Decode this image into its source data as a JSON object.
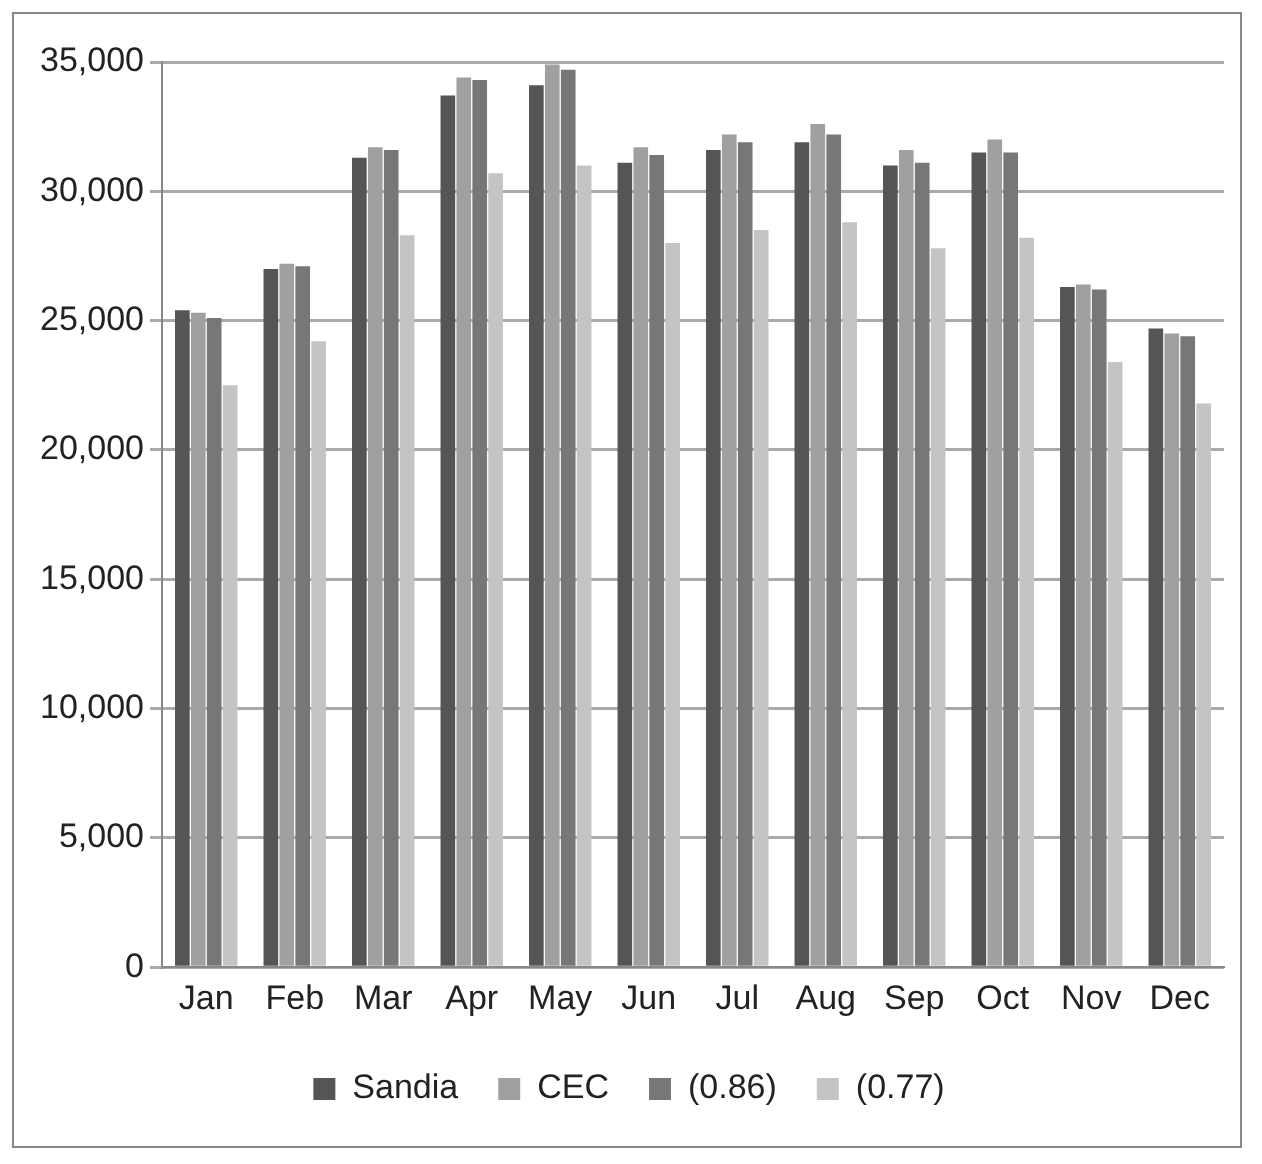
{
  "chart_data": {
    "type": "bar",
    "categories": [
      "Jan",
      "Feb",
      "Mar",
      "Apr",
      "May",
      "Jun",
      "Jul",
      "Aug",
      "Sep",
      "Oct",
      "Nov",
      "Dec"
    ],
    "series": [
      {
        "name": "Sandia",
        "color": "#555555",
        "values": [
          25400,
          27000,
          31300,
          33700,
          34100,
          31100,
          31600,
          31900,
          31000,
          31500,
          26300,
          24700
        ]
      },
      {
        "name": "CEC",
        "color": "#a0a0a0",
        "values": [
          25300,
          27200,
          31700,
          34400,
          34900,
          31700,
          32200,
          32600,
          31600,
          32000,
          26400,
          24500
        ]
      },
      {
        "name": "(0.86)",
        "color": "#777777",
        "values": [
          25100,
          27100,
          31600,
          34300,
          34700,
          31400,
          31900,
          32200,
          31100,
          31500,
          26200,
          24400
        ]
      },
      {
        "name": "(0.77)",
        "color": "#c4c4c4",
        "values": [
          22500,
          24200,
          28300,
          30700,
          31000,
          28000,
          28500,
          28800,
          27800,
          28200,
          23400,
          21800
        ]
      }
    ],
    "ylim": [
      0,
      35000
    ],
    "yticks": [
      {
        "value": 0,
        "label": "0"
      },
      {
        "value": 5000,
        "label": "5,000"
      },
      {
        "value": 10000,
        "label": "10,000"
      },
      {
        "value": 15000,
        "label": "15,000"
      },
      {
        "value": 20000,
        "label": "20,000"
      },
      {
        "value": 25000,
        "label": "25,000"
      },
      {
        "value": 30000,
        "label": "30,000"
      },
      {
        "value": 35000,
        "label": "35,000"
      }
    ],
    "grid": "y",
    "legend": "bottom"
  }
}
